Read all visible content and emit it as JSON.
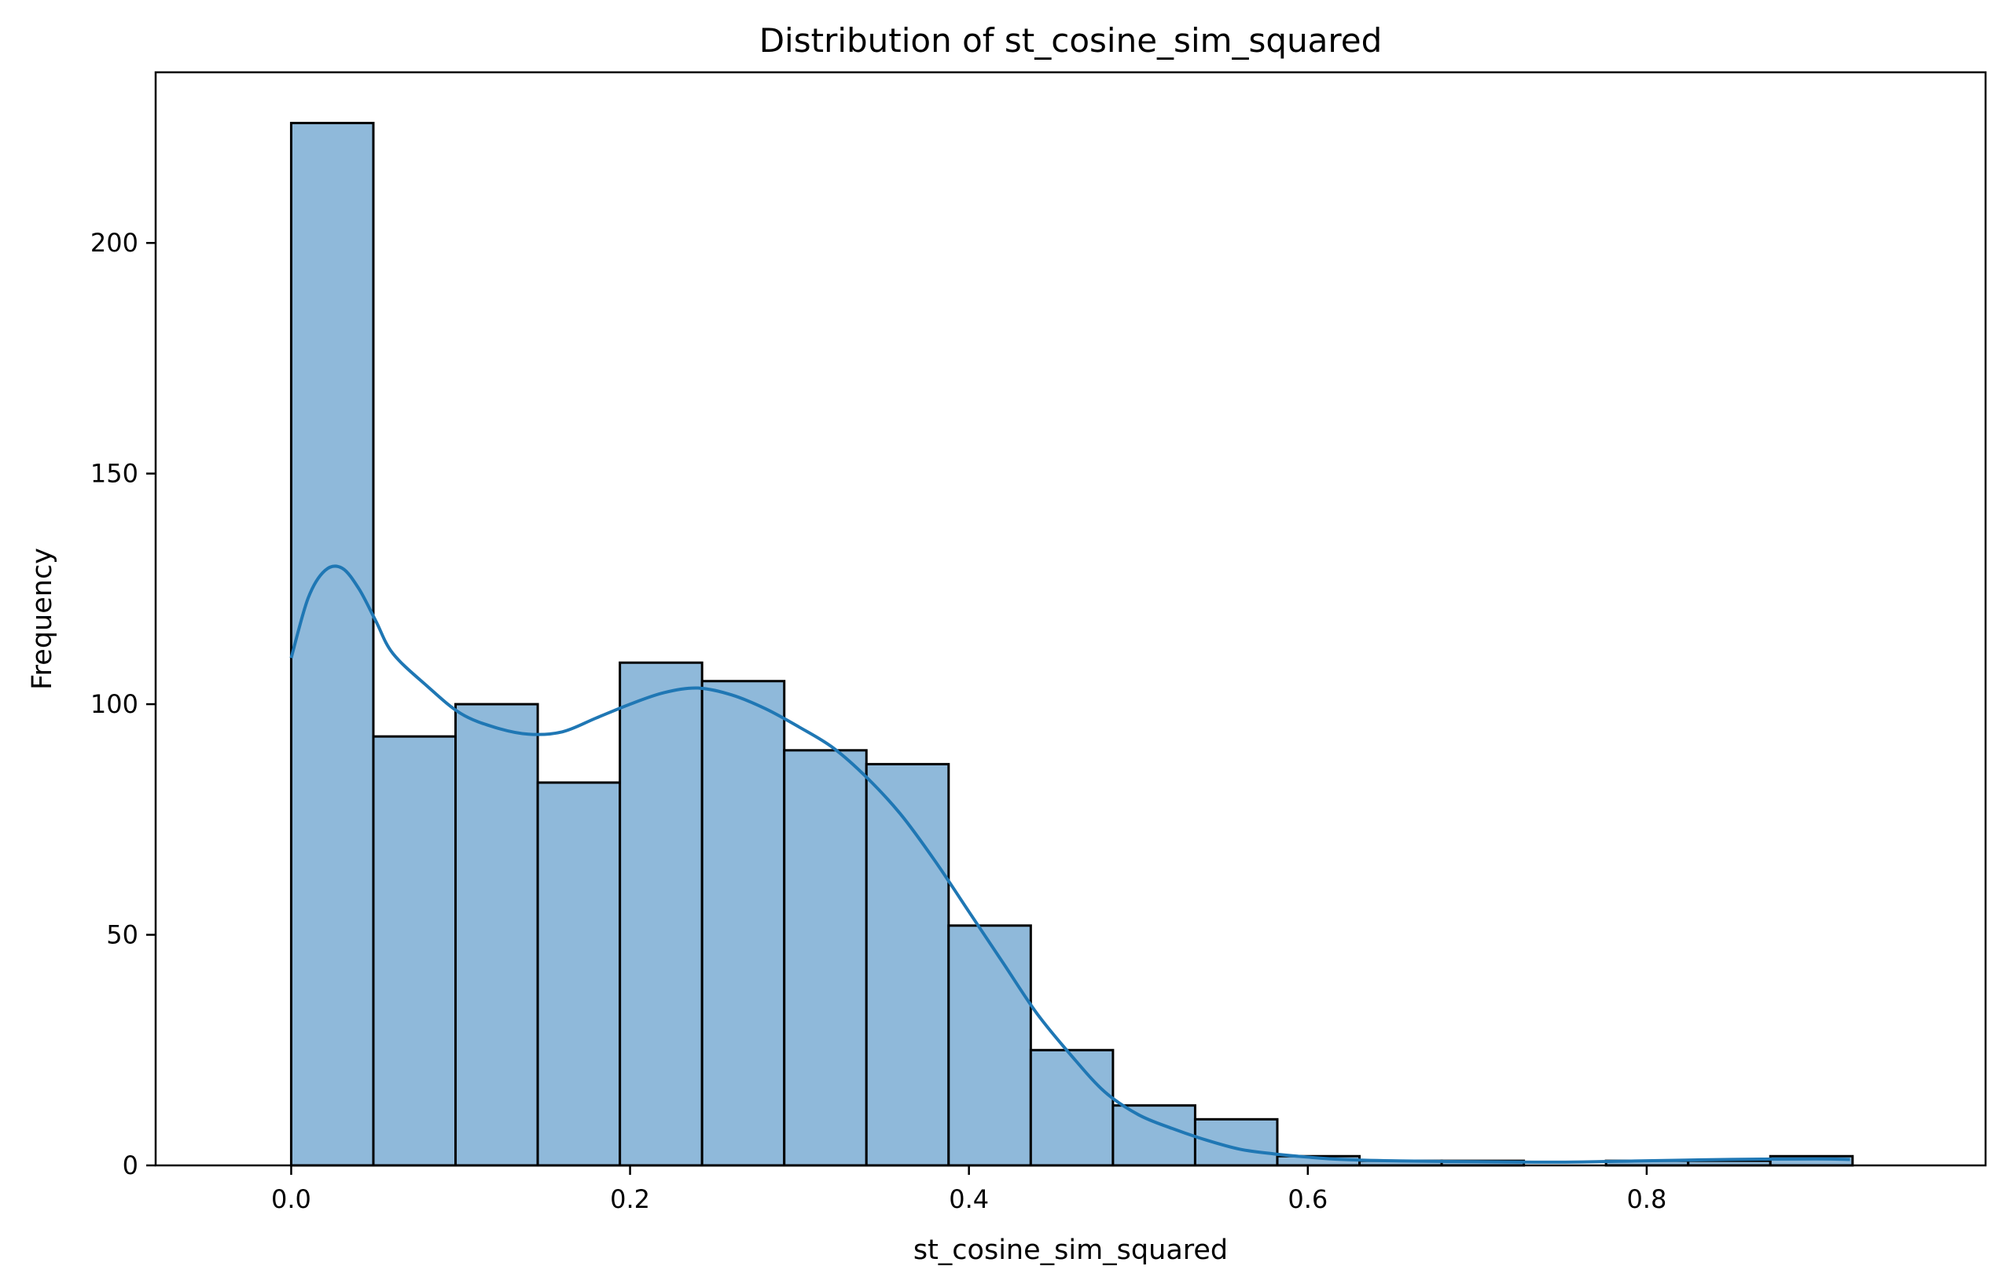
{
  "chart_data": {
    "type": "bar",
    "subtype": "histogram_with_kde",
    "title": "Distribution of st_cosine_sim_squared",
    "xlabel": "st_cosine_sim_squared",
    "ylabel": "Frequency",
    "xlim": [
      -0.08,
      1.0
    ],
    "ylim": [
      0,
      237
    ],
    "xticks": [
      0.0,
      0.2,
      0.4,
      0.6,
      0.8
    ],
    "xtick_labels": [
      "0.0",
      "0.2",
      "0.4",
      "0.6",
      "0.8"
    ],
    "yticks": [
      0,
      50,
      100,
      150,
      200
    ],
    "ytick_labels": [
      "0",
      "50",
      "100",
      "150",
      "200"
    ],
    "grid": false,
    "bins": {
      "edges": [
        0.0,
        0.0485,
        0.097,
        0.1455,
        0.194,
        0.2425,
        0.291,
        0.3395,
        0.388,
        0.4365,
        0.485,
        0.5335,
        0.582,
        0.6305,
        0.679,
        0.7275,
        0.776,
        0.8245,
        0.873,
        0.9215
      ],
      "counts": [
        226,
        93,
        100,
        83,
        109,
        105,
        90,
        87,
        52,
        25,
        13,
        10,
        2,
        1,
        1,
        0,
        1,
        1,
        2
      ]
    },
    "kde": {
      "x": [
        0.0,
        0.01,
        0.02,
        0.03,
        0.04,
        0.05,
        0.06,
        0.08,
        0.1,
        0.12,
        0.14,
        0.16,
        0.18,
        0.2,
        0.22,
        0.24,
        0.26,
        0.28,
        0.3,
        0.32,
        0.34,
        0.36,
        0.38,
        0.4,
        0.42,
        0.44,
        0.46,
        0.48,
        0.5,
        0.52,
        0.54,
        0.56,
        0.58,
        0.6,
        0.62,
        0.65,
        0.7,
        0.75,
        0.8,
        0.85,
        0.9,
        0.92
      ],
      "y": [
        110,
        123,
        129,
        129.5,
        125,
        118,
        111,
        104,
        98,
        95,
        93.5,
        94,
        97,
        100,
        102.5,
        103.5,
        102,
        99,
        95,
        90.5,
        84,
        76,
        66,
        55,
        44,
        33,
        24,
        16,
        11,
        8,
        5.5,
        3.5,
        2.5,
        1.8,
        1.3,
        1.0,
        0.8,
        0.7,
        1.0,
        1.3,
        1.4,
        1.3
      ]
    },
    "colors": {
      "bar_fill": "#8fb9da",
      "bar_edge": "#000000",
      "kde_line": "#1f77b4"
    }
  }
}
